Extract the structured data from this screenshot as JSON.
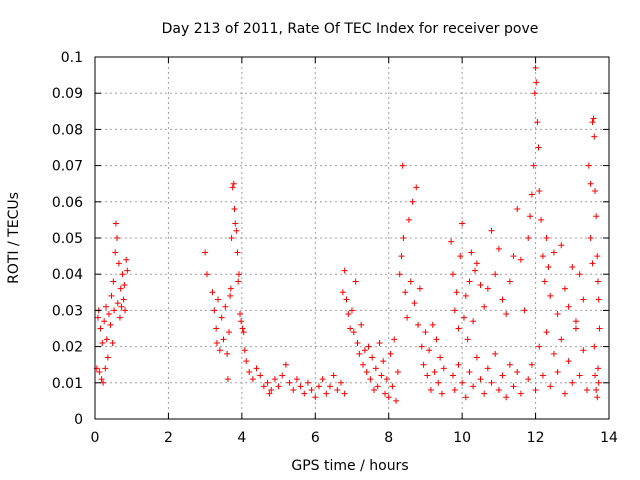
{
  "chart_data": {
    "type": "scatter",
    "title": "Day 213 of 2011, Rate Of TEC Index for receiver pove",
    "xlabel": "GPS time / hours",
    "ylabel": "ROTI / TECUs",
    "xlim": [
      0,
      14
    ],
    "ylim": [
      0,
      0.1
    ],
    "xticks": [
      "0",
      "2",
      "4",
      "6",
      "8",
      "10",
      "12",
      "14"
    ],
    "yticks": [
      "0",
      "0.01",
      "0.02",
      "0.03",
      "0.04",
      "0.05",
      "0.06",
      "0.07",
      "0.08",
      "0.09",
      "0.1"
    ],
    "grid": true,
    "marker": "+",
    "color": "#ff0000",
    "series": [
      {
        "points": [
          [
            0.05,
            0.014
          ],
          [
            0.08,
            0.028
          ],
          [
            0.1,
            0.03
          ],
          [
            0.12,
            0.013
          ],
          [
            0.15,
            0.025
          ],
          [
            0.18,
            0.011
          ],
          [
            0.2,
            0.021
          ],
          [
            0.22,
            0.01
          ],
          [
            0.25,
            0.027
          ],
          [
            0.28,
            0.014
          ],
          [
            0.3,
            0.031
          ],
          [
            0.32,
            0.022
          ],
          [
            0.35,
            0.017
          ],
          [
            0.38,
            0.029
          ],
          [
            0.42,
            0.026
          ],
          [
            0.45,
            0.034
          ],
          [
            0.48,
            0.021
          ],
          [
            0.5,
            0.038
          ],
          [
            0.52,
            0.03
          ],
          [
            0.55,
            0.046
          ],
          [
            0.57,
            0.054
          ],
          [
            0.6,
            0.05
          ],
          [
            0.62,
            0.032
          ],
          [
            0.65,
            0.043
          ],
          [
            0.68,
            0.028
          ],
          [
            0.7,
            0.036
          ],
          [
            0.72,
            0.031
          ],
          [
            0.75,
            0.04
          ],
          [
            0.78,
            0.033
          ],
          [
            0.8,
            0.037
          ],
          [
            0.82,
            0.03
          ],
          [
            0.85,
            0.044
          ],
          [
            0.88,
            0.041
          ],
          [
            3.0,
            0.046
          ],
          [
            3.05,
            0.04
          ],
          [
            3.2,
            0.035
          ],
          [
            3.25,
            0.03
          ],
          [
            3.3,
            0.025
          ],
          [
            3.32,
            0.021
          ],
          [
            3.35,
            0.033
          ],
          [
            3.4,
            0.019
          ],
          [
            3.45,
            0.028
          ],
          [
            3.5,
            0.022
          ],
          [
            3.55,
            0.031
          ],
          [
            3.6,
            0.018
          ],
          [
            3.62,
            0.011
          ],
          [
            3.65,
            0.024
          ],
          [
            3.68,
            0.034
          ],
          [
            3.7,
            0.036
          ],
          [
            3.72,
            0.05
          ],
          [
            3.75,
            0.064
          ],
          [
            3.78,
            0.065
          ],
          [
            3.8,
            0.058
          ],
          [
            3.82,
            0.054
          ],
          [
            3.85,
            0.052
          ],
          [
            3.88,
            0.046
          ],
          [
            3.9,
            0.038
          ],
          [
            3.92,
            0.04
          ],
          [
            3.95,
            0.029
          ],
          [
            3.98,
            0.027
          ],
          [
            4.02,
            0.025
          ],
          [
            4.05,
            0.024
          ],
          [
            4.08,
            0.019
          ],
          [
            4.12,
            0.016
          ],
          [
            4.2,
            0.013
          ],
          [
            4.3,
            0.011
          ],
          [
            4.4,
            0.014
          ],
          [
            4.5,
            0.012
          ],
          [
            4.6,
            0.009
          ],
          [
            4.7,
            0.01
          ],
          [
            4.75,
            0.007
          ],
          [
            4.8,
            0.008
          ],
          [
            4.9,
            0.011
          ],
          [
            5.0,
            0.009
          ],
          [
            5.1,
            0.012
          ],
          [
            5.2,
            0.015
          ],
          [
            5.3,
            0.01
          ],
          [
            5.4,
            0.008
          ],
          [
            5.5,
            0.011
          ],
          [
            5.6,
            0.009
          ],
          [
            5.7,
            0.007
          ],
          [
            5.8,
            0.01
          ],
          [
            5.9,
            0.008
          ],
          [
            6.0,
            0.006
          ],
          [
            6.1,
            0.009
          ],
          [
            6.2,
            0.011
          ],
          [
            6.3,
            0.007
          ],
          [
            6.4,
            0.009
          ],
          [
            6.5,
            0.012
          ],
          [
            6.6,
            0.008
          ],
          [
            6.7,
            0.01
          ],
          [
            6.8,
            0.007
          ],
          [
            6.75,
            0.035
          ],
          [
            6.8,
            0.041
          ],
          [
            6.85,
            0.033
          ],
          [
            6.9,
            0.029
          ],
          [
            6.95,
            0.025
          ],
          [
            7.0,
            0.03
          ],
          [
            7.05,
            0.024
          ],
          [
            7.1,
            0.038
          ],
          [
            7.15,
            0.021
          ],
          [
            7.2,
            0.018
          ],
          [
            7.25,
            0.026
          ],
          [
            7.3,
            0.015
          ],
          [
            7.35,
            0.019
          ],
          [
            7.4,
            0.013
          ],
          [
            7.45,
            0.02
          ],
          [
            7.5,
            0.011
          ],
          [
            7.55,
            0.017
          ],
          [
            7.6,
            0.008
          ],
          [
            7.65,
            0.014
          ],
          [
            7.7,
            0.009
          ],
          [
            7.75,
            0.021
          ],
          [
            7.8,
            0.012
          ],
          [
            7.85,
            0.016
          ],
          [
            7.9,
            0.007
          ],
          [
            7.95,
            0.011
          ],
          [
            8.0,
            0.006
          ],
          [
            8.05,
            0.018
          ],
          [
            8.1,
            0.009
          ],
          [
            8.15,
            0.022
          ],
          [
            8.2,
            0.005
          ],
          [
            8.25,
            0.013
          ],
          [
            8.3,
            0.04
          ],
          [
            8.35,
            0.045
          ],
          [
            8.38,
            0.07
          ],
          [
            8.4,
            0.05
          ],
          [
            8.45,
            0.035
          ],
          [
            8.5,
            0.028
          ],
          [
            8.55,
            0.055
          ],
          [
            8.6,
            0.038
          ],
          [
            8.65,
            0.06
          ],
          [
            8.7,
            0.032
          ],
          [
            8.75,
            0.064
          ],
          [
            8.8,
            0.026
          ],
          [
            8.85,
            0.036
          ],
          [
            8.9,
            0.02
          ],
          [
            8.95,
            0.015
          ],
          [
            9.0,
            0.024
          ],
          [
            9.05,
            0.012
          ],
          [
            9.1,
            0.019
          ],
          [
            9.15,
            0.008
          ],
          [
            9.2,
            0.026
          ],
          [
            9.25,
            0.013
          ],
          [
            9.3,
            0.022
          ],
          [
            9.35,
            0.01
          ],
          [
            9.4,
            0.017
          ],
          [
            9.45,
            0.007
          ],
          [
            9.5,
            0.014
          ],
          [
            9.7,
            0.049
          ],
          [
            9.75,
            0.04
          ],
          [
            9.8,
            0.03
          ],
          [
            9.85,
            0.035
          ],
          [
            9.9,
            0.025
          ],
          [
            9.95,
            0.045
          ],
          [
            10.0,
            0.054
          ],
          [
            10.05,
            0.028
          ],
          [
            10.1,
            0.034
          ],
          [
            10.15,
            0.022
          ],
          [
            10.2,
            0.038
          ],
          [
            10.25,
            0.046
          ],
          [
            10.3,
            0.027
          ],
          [
            10.35,
            0.041
          ],
          [
            10.4,
            0.043
          ],
          [
            10.5,
            0.037
          ],
          [
            10.6,
            0.031
          ],
          [
            10.7,
            0.036
          ],
          [
            10.8,
            0.052
          ],
          [
            10.9,
            0.04
          ],
          [
            11.0,
            0.047
          ],
          [
            11.1,
            0.033
          ],
          [
            11.2,
            0.029
          ],
          [
            11.3,
            0.038
          ],
          [
            11.4,
            0.045
          ],
          [
            9.75,
            0.012
          ],
          [
            9.8,
            0.008
          ],
          [
            9.9,
            0.015
          ],
          [
            10.0,
            0.01
          ],
          [
            10.1,
            0.006
          ],
          [
            10.2,
            0.013
          ],
          [
            10.3,
            0.009
          ],
          [
            10.4,
            0.017
          ],
          [
            10.5,
            0.011
          ],
          [
            10.6,
            0.007
          ],
          [
            10.7,
            0.014
          ],
          [
            10.8,
            0.01
          ],
          [
            10.9,
            0.018
          ],
          [
            11.0,
            0.008
          ],
          [
            11.1,
            0.012
          ],
          [
            11.2,
            0.006
          ],
          [
            11.3,
            0.015
          ],
          [
            11.4,
            0.009
          ],
          [
            11.5,
            0.013
          ],
          [
            11.6,
            0.007
          ],
          [
            11.5,
            0.058
          ],
          [
            11.6,
            0.044
          ],
          [
            11.7,
            0.03
          ],
          [
            11.8,
            0.05
          ],
          [
            11.85,
            0.056
          ],
          [
            11.9,
            0.062
          ],
          [
            11.95,
            0.07
          ],
          [
            11.98,
            0.09
          ],
          [
            12.0,
            0.097
          ],
          [
            12.02,
            0.093
          ],
          [
            12.05,
            0.082
          ],
          [
            12.08,
            0.075
          ],
          [
            12.1,
            0.063
          ],
          [
            12.15,
            0.055
          ],
          [
            12.2,
            0.045
          ],
          [
            12.25,
            0.038
          ],
          [
            12.3,
            0.05
          ],
          [
            12.35,
            0.042
          ],
          [
            12.4,
            0.034
          ],
          [
            12.5,
            0.046
          ],
          [
            12.6,
            0.029
          ],
          [
            12.7,
            0.048
          ],
          [
            12.8,
            0.036
          ],
          [
            12.9,
            0.031
          ],
          [
            13.0,
            0.042
          ],
          [
            13.1,
            0.027
          ],
          [
            13.2,
            0.04
          ],
          [
            13.3,
            0.033
          ],
          [
            11.8,
            0.011
          ],
          [
            11.9,
            0.015
          ],
          [
            12.0,
            0.008
          ],
          [
            12.1,
            0.02
          ],
          [
            12.2,
            0.012
          ],
          [
            12.3,
            0.024
          ],
          [
            12.4,
            0.009
          ],
          [
            12.5,
            0.018
          ],
          [
            12.6,
            0.013
          ],
          [
            12.7,
            0.022
          ],
          [
            12.8,
            0.007
          ],
          [
            12.9,
            0.016
          ],
          [
            13.0,
            0.01
          ],
          [
            13.1,
            0.025
          ],
          [
            13.2,
            0.012
          ],
          [
            13.3,
            0.019
          ],
          [
            13.4,
            0.008
          ],
          [
            13.45,
            0.07
          ],
          [
            13.5,
            0.065
          ],
          [
            13.55,
            0.082
          ],
          [
            13.58,
            0.083
          ],
          [
            13.6,
            0.078
          ],
          [
            13.62,
            0.063
          ],
          [
            13.65,
            0.056
          ],
          [
            13.68,
            0.045
          ],
          [
            13.7,
            0.038
          ],
          [
            13.72,
            0.033
          ],
          [
            13.74,
            0.025
          ],
          [
            13.5,
            0.05
          ],
          [
            13.55,
            0.043
          ],
          [
            13.6,
            0.02
          ],
          [
            13.62,
            0.012
          ],
          [
            13.65,
            0.008
          ],
          [
            13.68,
            0.006
          ],
          [
            13.7,
            0.014
          ],
          [
            13.72,
            0.01
          ]
        ]
      }
    ]
  }
}
